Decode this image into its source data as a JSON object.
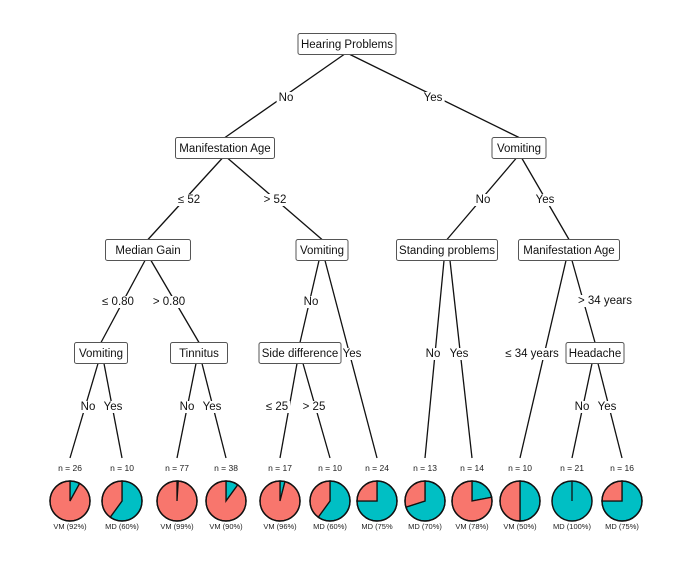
{
  "colors": {
    "VM": "#F8766D",
    "MD": "#00BFC4"
  },
  "nodes": [
    {
      "id": "root",
      "label": "Hearing Problems"
    },
    {
      "id": "n1",
      "label": "Manifestation Age"
    },
    {
      "id": "n2",
      "label": "Vomiting"
    },
    {
      "id": "n3",
      "label": "Median Gain"
    },
    {
      "id": "n4",
      "label": "Vomiting"
    },
    {
      "id": "n5",
      "label": "Standing problems"
    },
    {
      "id": "n6",
      "label": "Manifestation Age"
    },
    {
      "id": "n7",
      "label": "Vomiting"
    },
    {
      "id": "n8",
      "label": "Tinnitus"
    },
    {
      "id": "n9",
      "label": "Side difference"
    },
    {
      "id": "n10",
      "label": "Headache"
    }
  ],
  "leaves": [
    {
      "id": "L1",
      "n": "n = 26",
      "md_fraction": 0.08,
      "label": "VM (92%)"
    },
    {
      "id": "L2",
      "n": "n = 10",
      "md_fraction": 0.6,
      "label": "MD (60%)"
    },
    {
      "id": "L3",
      "n": "n = 77",
      "md_fraction": 0.01,
      "label": "VM (99%)"
    },
    {
      "id": "L4",
      "n": "n = 38",
      "md_fraction": 0.1,
      "label": "VM (90%)"
    },
    {
      "id": "L5",
      "n": "n = 17",
      "md_fraction": 0.04,
      "label": "VM (96%)"
    },
    {
      "id": "L6",
      "n": "n = 10",
      "md_fraction": 0.6,
      "label": "MD (60%)"
    },
    {
      "id": "L7",
      "n": "n = 24",
      "md_fraction": 0.75,
      "label": "MD (75%"
    },
    {
      "id": "L8",
      "n": "n = 13",
      "md_fraction": 0.7,
      "label": "MD (70%)"
    },
    {
      "id": "L9",
      "n": "n = 14",
      "md_fraction": 0.22,
      "label": "VM (78%)"
    },
    {
      "id": "L10",
      "n": "n = 10",
      "md_fraction": 0.5,
      "label": "VM (50%)"
    },
    {
      "id": "L11",
      "n": "n = 21",
      "md_fraction": 1.0,
      "label": "MD (100%)"
    },
    {
      "id": "L12",
      "n": "n = 16",
      "md_fraction": 0.75,
      "label": "MD (75%)"
    }
  ],
  "edges": [
    {
      "from": "root",
      "to": "n1",
      "label": "No"
    },
    {
      "from": "root",
      "to": "n2",
      "label": "Yes"
    },
    {
      "from": "n1",
      "to": "n3",
      "label": "≤  52"
    },
    {
      "from": "n1",
      "to": "n4",
      "label": ">  52"
    },
    {
      "from": "n2",
      "to": "n5",
      "label": "No"
    },
    {
      "from": "n2",
      "to": "n6",
      "label": "Yes"
    },
    {
      "from": "n3",
      "to": "n7",
      "label": "≤  0.80"
    },
    {
      "from": "n3",
      "to": "n8",
      "label": ">  0.80"
    },
    {
      "from": "n4",
      "to": "n9",
      "label": "No"
    },
    {
      "from": "n4",
      "to": "L7",
      "label": "Yes"
    },
    {
      "from": "n5",
      "to": "L8",
      "label": "No"
    },
    {
      "from": "n5",
      "to": "L9",
      "label": "Yes"
    },
    {
      "from": "n6",
      "to": "L10",
      "label": "≤  34 years"
    },
    {
      "from": "n6",
      "to": "n10",
      "label": ">  34 years"
    },
    {
      "from": "n7",
      "to": "L1",
      "label": "No"
    },
    {
      "from": "n7",
      "to": "L2",
      "label": "Yes"
    },
    {
      "from": "n8",
      "to": "L3",
      "label": "No"
    },
    {
      "from": "n8",
      "to": "L4",
      "label": "Yes"
    },
    {
      "from": "n9",
      "to": "L5",
      "label": "≤  25"
    },
    {
      "from": "n9",
      "to": "L6",
      "label": ">  25"
    },
    {
      "from": "n10",
      "to": "L11",
      "label": "No"
    },
    {
      "from": "n10",
      "to": "L12",
      "label": "Yes"
    }
  ]
}
